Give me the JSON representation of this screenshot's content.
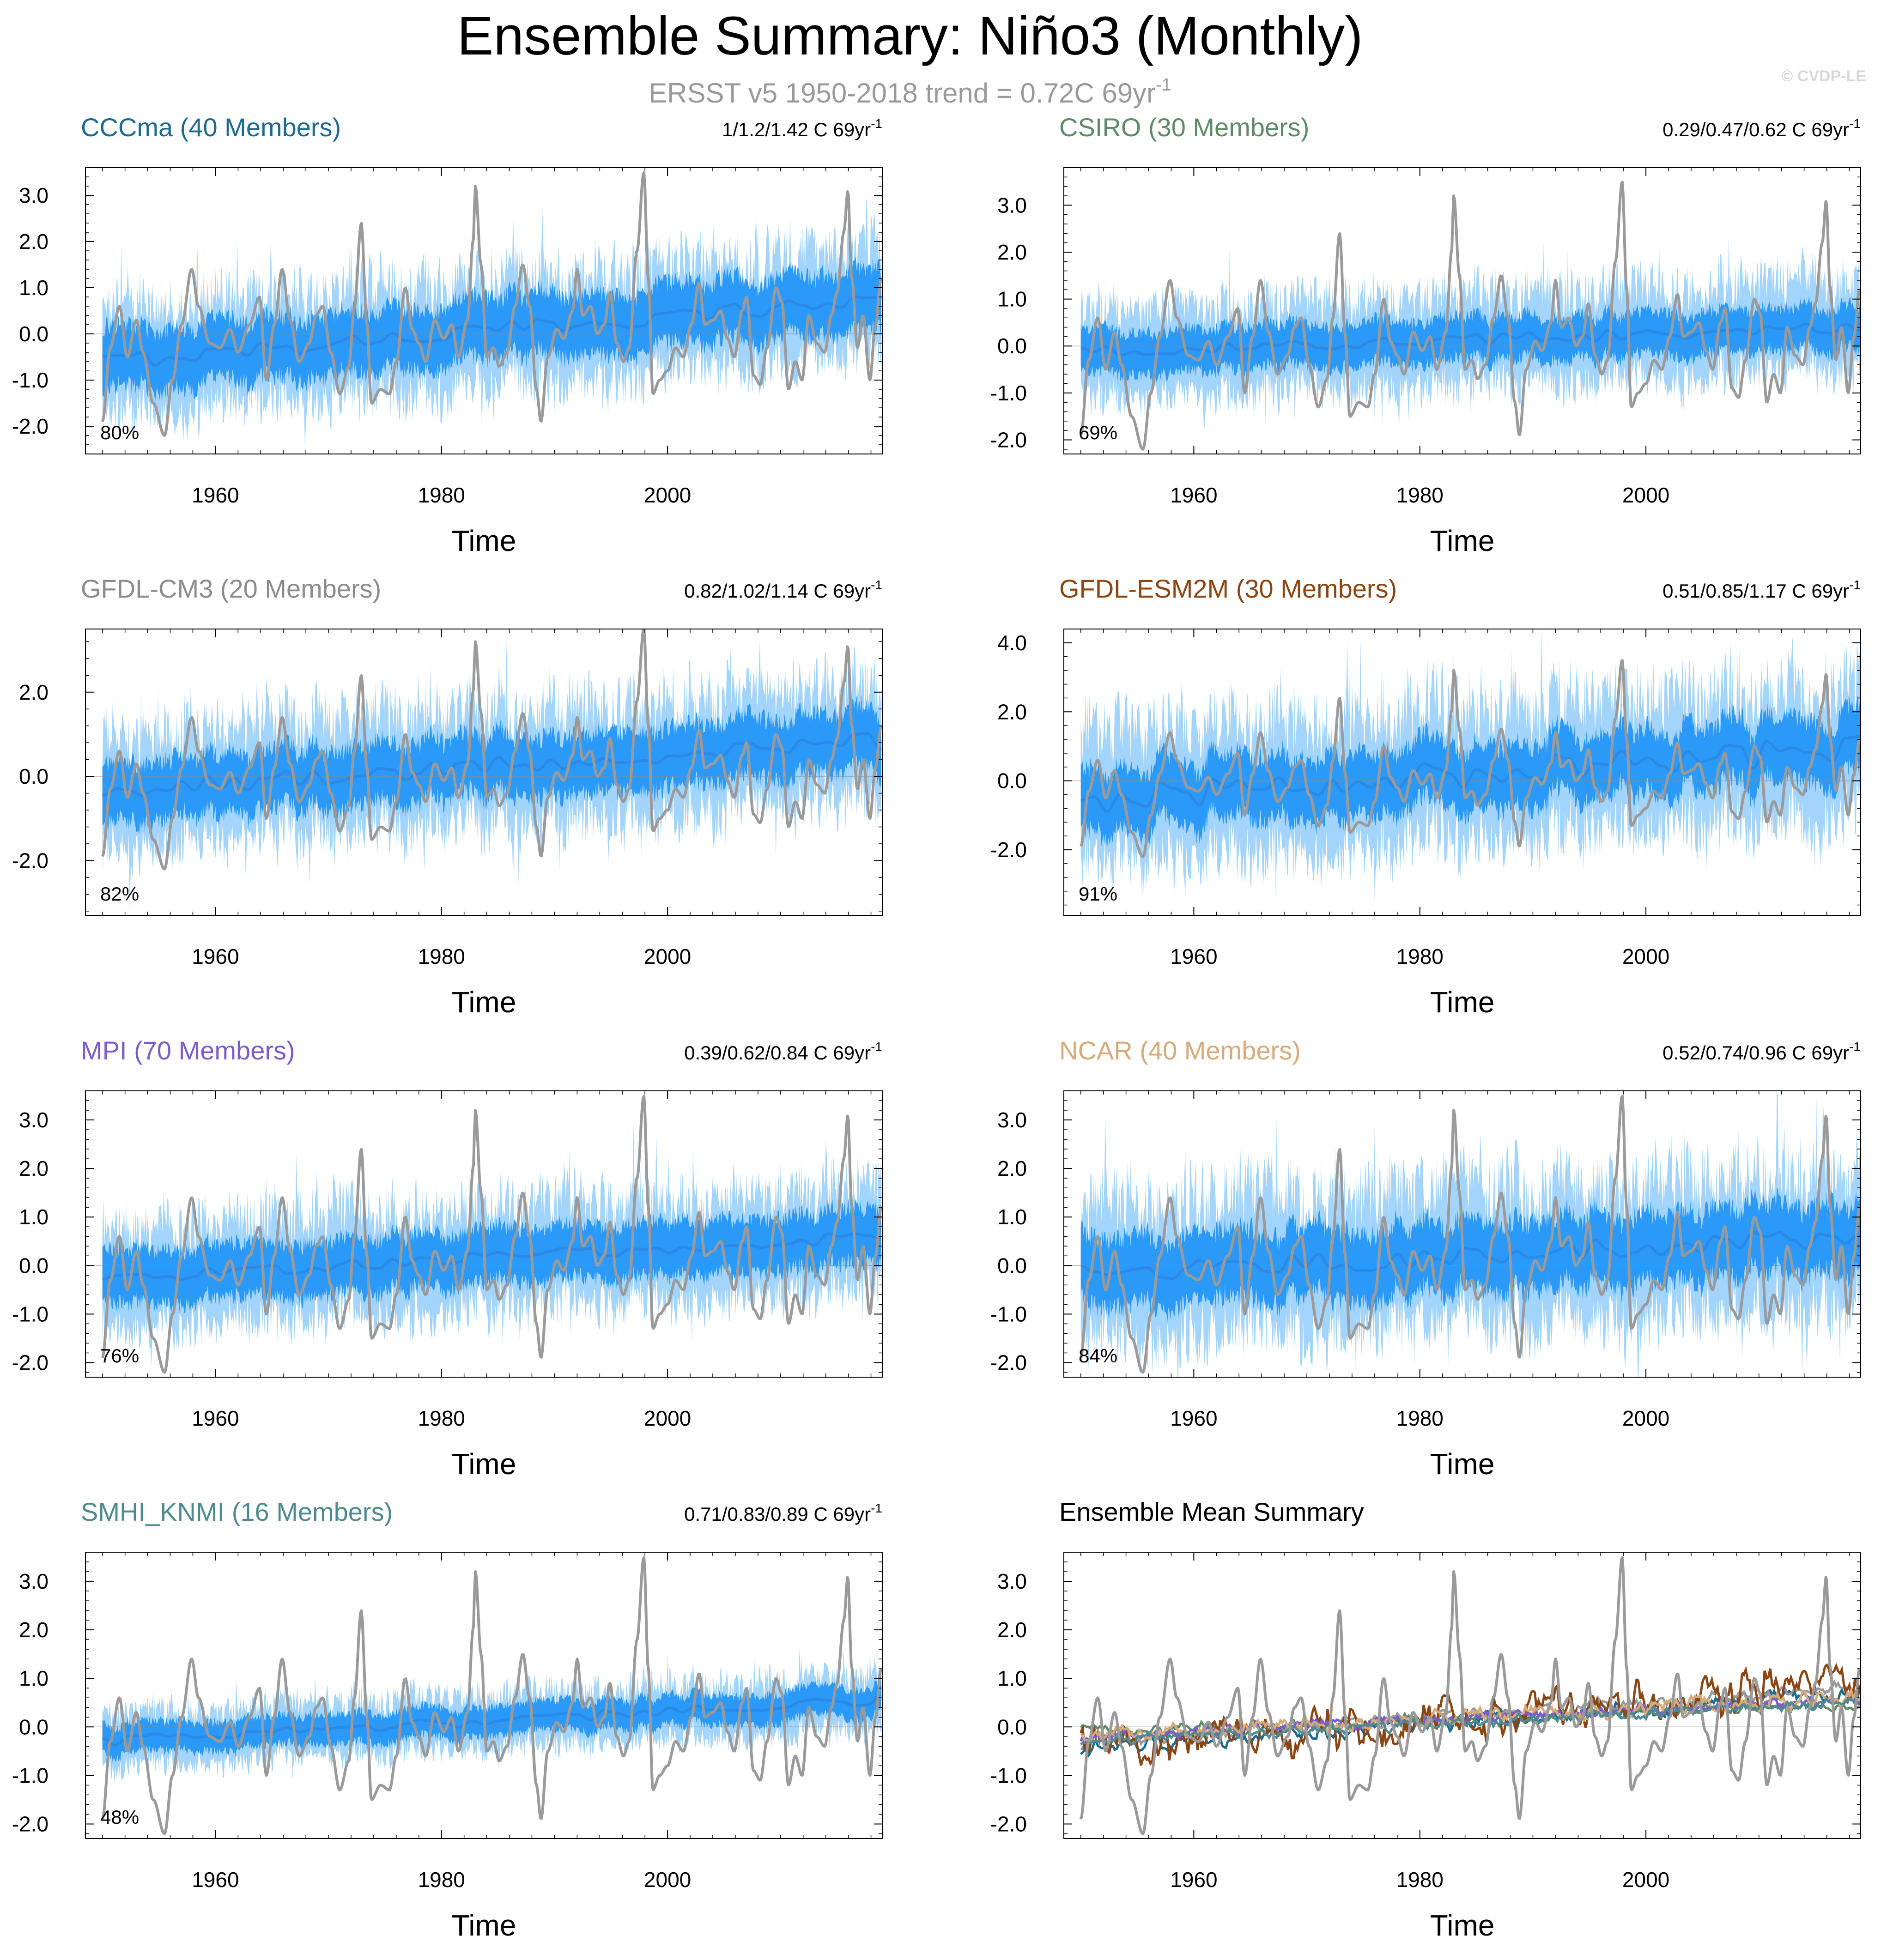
{
  "figure": {
    "title": "Ensemble Summary: Niño3 (Monthly)",
    "subtitle_main": "ERSST v5 1950-2018 trend = 0.72C 69yr",
    "subtitle_exp": "-1",
    "copyright": "© CVDP-LE",
    "obs_color": "#9a9a9a",
    "band_outer_color": "#a3d4fc",
    "band_inner_color": "#2b99f8",
    "mean_line_color": "#2a8ae6"
  },
  "chart_data": [
    {
      "type": "line",
      "title": "CCCma (40 Members)",
      "title_color": "#1c6b8f",
      "trend_text": "1/1.2/1.42 C 69yr",
      "trend_exp": "-1",
      "pct_label": "80%",
      "xlabel": "Time",
      "xlim": [
        1948.5,
        2019.0
      ],
      "xticks": [
        1960,
        1980,
        2000
      ],
      "ylim": [
        -2.6,
        3.6
      ],
      "yticks": [
        -2.0,
        -1.0,
        0.0,
        1.0,
        2.0,
        3.0
      ],
      "ytick_labels": [
        "-2.0",
        "-1.0",
        "0.0",
        "1.0",
        "2.0",
        "3.0"
      ],
      "ens_start": -0.6,
      "ens_end": 0.75,
      "ens_mean_amp": 0.18,
      "band_inner": 0.65,
      "band_outer": 1.15
    },
    {
      "type": "line",
      "title": "CSIRO (30 Members)",
      "title_color": "#5f8a67",
      "trend_text": "0.29/0.47/0.62 C 69yr",
      "trend_exp": "-1",
      "pct_label": "69%",
      "xlabel": "Time",
      "xlim": [
        1948.5,
        2019.0
      ],
      "xticks": [
        1960,
        1980,
        2000
      ],
      "ylim": [
        -2.3,
        3.8
      ],
      "yticks": [
        -2.0,
        -1.0,
        0.0,
        1.0,
        2.0,
        3.0
      ],
      "ytick_labels": [
        "-2.0",
        "-1.0",
        "0.0",
        "1.0",
        "2.0",
        "3.0"
      ],
      "ens_start": -0.15,
      "ens_end": 0.4,
      "ens_mean_amp": 0.12,
      "band_inner": 0.45,
      "band_outer": 0.95
    },
    {
      "type": "line",
      "title": "GFDL-CM3 (20 Members)",
      "title_color": "#8c8c8c",
      "trend_text": "0.82/1.02/1.14 C 69yr",
      "trend_exp": "-1",
      "pct_label": "82%",
      "xlabel": "Time",
      "xlim": [
        1948.5,
        2019.0
      ],
      "xticks": [
        1960,
        1980,
        2000
      ],
      "ylim": [
        -3.3,
        3.5
      ],
      "yticks": [
        -2.0,
        0.0,
        2.0
      ],
      "ytick_labels": [
        "-2.0",
        "0.0",
        "2.0"
      ],
      "ens_start": -0.35,
      "ens_end": 0.85,
      "ens_mean_amp": 0.2,
      "band_inner": 0.7,
      "band_outer": 1.35
    },
    {
      "type": "line",
      "title": "GFDL-ESM2M (30 Members)",
      "title_color": "#8b4513",
      "trend_text": "0.51/0.85/1.17 C 69yr",
      "trend_exp": "-1",
      "pct_label": "91%",
      "xlabel": "Time",
      "xlim": [
        1948.5,
        2019.0
      ],
      "xticks": [
        1960,
        1980,
        2000
      ],
      "ylim": [
        -3.9,
        4.4
      ],
      "yticks": [
        -2.0,
        0.0,
        2.0,
        4.0
      ],
      "ytick_labels": [
        "-2.0",
        "0.0",
        "2.0",
        "4.0"
      ],
      "ens_start": -0.5,
      "ens_end": 0.9,
      "ens_mean_amp": 0.45,
      "band_inner": 0.9,
      "band_outer": 1.9
    },
    {
      "type": "line",
      "title": "MPI (70 Members)",
      "title_color": "#7b5ccf",
      "trend_text": "0.39/0.62/0.84 C 69yr",
      "trend_exp": "-1",
      "pct_label": "76%",
      "xlabel": "Time",
      "xlim": [
        1948.5,
        2019.0
      ],
      "xticks": [
        1960,
        1980,
        2000
      ],
      "ylim": [
        -2.3,
        3.6
      ],
      "yticks": [
        -2.0,
        -1.0,
        0.0,
        1.0,
        2.0,
        3.0
      ],
      "ytick_labels": [
        "-2.0",
        "-1.0",
        "0.0",
        "1.0",
        "2.0",
        "3.0"
      ],
      "ens_start": -0.25,
      "ens_end": 0.6,
      "ens_mean_amp": 0.12,
      "band_inner": 0.55,
      "band_outer": 1.05
    },
    {
      "type": "line",
      "title": "NCAR (40 Members)",
      "title_color": "#d7aa7a",
      "trend_text": "0.52/0.74/0.96 C 69yr",
      "trend_exp": "-1",
      "pct_label": "84%",
      "xlabel": "Time",
      "xlim": [
        1948.5,
        2019.0
      ],
      "xticks": [
        1960,
        1980,
        2000
      ],
      "ylim": [
        -2.3,
        3.6
      ],
      "yticks": [
        -2.0,
        -1.0,
        0.0,
        1.0,
        2.0,
        3.0
      ],
      "ytick_labels": [
        "-2.0",
        "-1.0",
        "0.0",
        "1.0",
        "2.0",
        "3.0"
      ],
      "ens_start": -0.2,
      "ens_end": 0.6,
      "ens_mean_amp": 0.2,
      "band_inner": 0.7,
      "band_outer": 1.4
    },
    {
      "type": "line",
      "title": "SMHI_KNMI (16 Members)",
      "title_color": "#4d8a8f",
      "trend_text": "0.71/0.83/0.89 C 69yr",
      "trend_exp": "-1",
      "pct_label": "48%",
      "xlabel": "Time",
      "xlim": [
        1948.5,
        2019.0
      ],
      "xticks": [
        1960,
        1980,
        2000
      ],
      "ylim": [
        -2.3,
        3.6
      ],
      "yticks": [
        -2.0,
        -1.0,
        0.0,
        1.0,
        2.0,
        3.0
      ],
      "ytick_labels": [
        "-2.0",
        "-1.0",
        "0.0",
        "1.0",
        "2.0",
        "3.0"
      ],
      "ens_start": -0.3,
      "ens_end": 0.55,
      "ens_mean_amp": 0.1,
      "band_inner": 0.3,
      "band_outer": 0.55
    },
    {
      "type": "line",
      "title": "Ensemble Mean Summary",
      "title_color": "#000000",
      "trend_text": "",
      "trend_exp": "",
      "pct_label": "",
      "xlabel": "Time",
      "xlim": [
        1948.5,
        2019.0
      ],
      "xticks": [
        1960,
        1980,
        2000
      ],
      "ylim": [
        -2.3,
        3.6
      ],
      "yticks": [
        -2.0,
        -1.0,
        0.0,
        1.0,
        2.0,
        3.0
      ],
      "ytick_labels": [
        "-2.0",
        "-1.0",
        "0.0",
        "1.0",
        "2.0",
        "3.0"
      ],
      "summary": true,
      "series": [
        {
          "name": "CCCma",
          "color": "#1c6b8f",
          "start": -0.45,
          "end": 0.7,
          "amp": 0.15
        },
        {
          "name": "CSIRO",
          "color": "#5f8a67",
          "start": -0.1,
          "end": 0.45,
          "amp": 0.1
        },
        {
          "name": "GFDL-CM3",
          "color": "#9a9a9a",
          "start": -0.3,
          "end": 0.8,
          "amp": 0.12
        },
        {
          "name": "GFDL-ESM2M",
          "color": "#8b4513",
          "start": -0.5,
          "end": 0.9,
          "amp": 0.4
        },
        {
          "name": "MPI",
          "color": "#7b5ccf",
          "start": -0.2,
          "end": 0.55,
          "amp": 0.1
        },
        {
          "name": "NCAR",
          "color": "#d7aa7a",
          "start": -0.2,
          "end": 0.6,
          "amp": 0.15
        },
        {
          "name": "SMHI_KNMI",
          "color": "#4d8a8f",
          "start": -0.3,
          "end": 0.5,
          "amp": 0.1
        }
      ]
    }
  ],
  "observations": {
    "name": "ERSST v5",
    "anchors": [
      [
        1950.0,
        -1.9
      ],
      [
        1950.7,
        -0.3
      ],
      [
        1951.5,
        0.6
      ],
      [
        1952.2,
        -0.5
      ],
      [
        1953.0,
        0.3
      ],
      [
        1953.6,
        -0.4
      ],
      [
        1954.5,
        -1.5
      ],
      [
        1955.5,
        -2.2
      ],
      [
        1956.2,
        -1.0
      ],
      [
        1957.0,
        0.2
      ],
      [
        1957.9,
        1.4
      ],
      [
        1958.5,
        0.6
      ],
      [
        1959.5,
        -0.2
      ],
      [
        1960.4,
        -0.3
      ],
      [
        1961.3,
        0.1
      ],
      [
        1962.0,
        -0.4
      ],
      [
        1963.0,
        0.2
      ],
      [
        1963.9,
        0.8
      ],
      [
        1964.5,
        -1.0
      ],
      [
        1965.2,
        0.2
      ],
      [
        1965.9,
        1.4
      ],
      [
        1966.6,
        0.3
      ],
      [
        1967.4,
        -0.6
      ],
      [
        1968.3,
        -0.2
      ],
      [
        1968.9,
        0.4
      ],
      [
        1969.5,
        0.6
      ],
      [
        1970.2,
        -0.4
      ],
      [
        1971.0,
        -1.3
      ],
      [
        1971.8,
        -0.7
      ],
      [
        1972.3,
        0.6
      ],
      [
        1972.9,
        2.4
      ],
      [
        1973.4,
        0.2
      ],
      [
        1973.8,
        -1.5
      ],
      [
        1974.6,
        -1.2
      ],
      [
        1975.4,
        -1.3
      ],
      [
        1976.0,
        -0.6
      ],
      [
        1976.8,
        1.0
      ],
      [
        1977.4,
        0.1
      ],
      [
        1978.0,
        -0.2
      ],
      [
        1978.6,
        -0.6
      ],
      [
        1979.4,
        0.3
      ],
      [
        1980.2,
        -0.1
      ],
      [
        1980.9,
        0.2
      ],
      [
        1981.5,
        -0.5
      ],
      [
        1982.3,
        0.3
      ],
      [
        1982.8,
        2.0
      ],
      [
        1983.0,
        3.2
      ],
      [
        1983.5,
        1.5
      ],
      [
        1984.0,
        -0.5
      ],
      [
        1984.6,
        -0.3
      ],
      [
        1985.1,
        -0.7
      ],
      [
        1985.8,
        -0.4
      ],
      [
        1986.5,
        0.6
      ],
      [
        1987.2,
        1.5
      ],
      [
        1987.8,
        0.6
      ],
      [
        1988.4,
        -1.2
      ],
      [
        1988.8,
        -1.9
      ],
      [
        1989.4,
        -0.5
      ],
      [
        1990.2,
        0.1
      ],
      [
        1990.8,
        -0.1
      ],
      [
        1991.6,
        0.5
      ],
      [
        1992.0,
        1.4
      ],
      [
        1992.5,
        0.4
      ],
      [
        1993.2,
        0.6
      ],
      [
        1993.8,
        0.0
      ],
      [
        1994.4,
        0.2
      ],
      [
        1994.9,
        0.9
      ],
      [
        1995.5,
        -0.2
      ],
      [
        1996.1,
        -0.6
      ],
      [
        1996.6,
        -0.3
      ],
      [
        1997.3,
        1.8
      ],
      [
        1997.9,
        3.5
      ],
      [
        1998.3,
        1.2
      ],
      [
        1998.7,
        -1.3
      ],
      [
        1999.3,
        -1.0
      ],
      [
        2000.0,
        -0.8
      ],
      [
        2000.7,
        -0.3
      ],
      [
        2001.4,
        -0.5
      ],
      [
        2002.1,
        0.2
      ],
      [
        2002.8,
        1.1
      ],
      [
        2003.3,
        0.2
      ],
      [
        2004.0,
        0.3
      ],
      [
        2004.7,
        0.5
      ],
      [
        2005.3,
        -0.1
      ],
      [
        2005.9,
        -0.5
      ],
      [
        2006.6,
        0.5
      ],
      [
        2007.0,
        0.8
      ],
      [
        2007.6,
        -0.9
      ],
      [
        2008.2,
        -1.1
      ],
      [
        2008.8,
        -0.3
      ],
      [
        2009.6,
        1.0
      ],
      [
        2010.1,
        0.7
      ],
      [
        2010.7,
        -1.2
      ],
      [
        2011.3,
        -0.6
      ],
      [
        2011.9,
        -1.0
      ],
      [
        2012.5,
        0.4
      ],
      [
        2013.2,
        -0.2
      ],
      [
        2013.9,
        -0.4
      ],
      [
        2014.5,
        0.4
      ],
      [
        2015.0,
        0.9
      ],
      [
        2015.6,
        2.2
      ],
      [
        2015.95,
        3.1
      ],
      [
        2016.3,
        1.2
      ],
      [
        2016.8,
        -0.3
      ],
      [
        2017.3,
        0.4
      ],
      [
        2017.9,
        -1.0
      ],
      [
        2018.4,
        0.2
      ],
      [
        2018.9,
        1.2
      ]
    ]
  }
}
